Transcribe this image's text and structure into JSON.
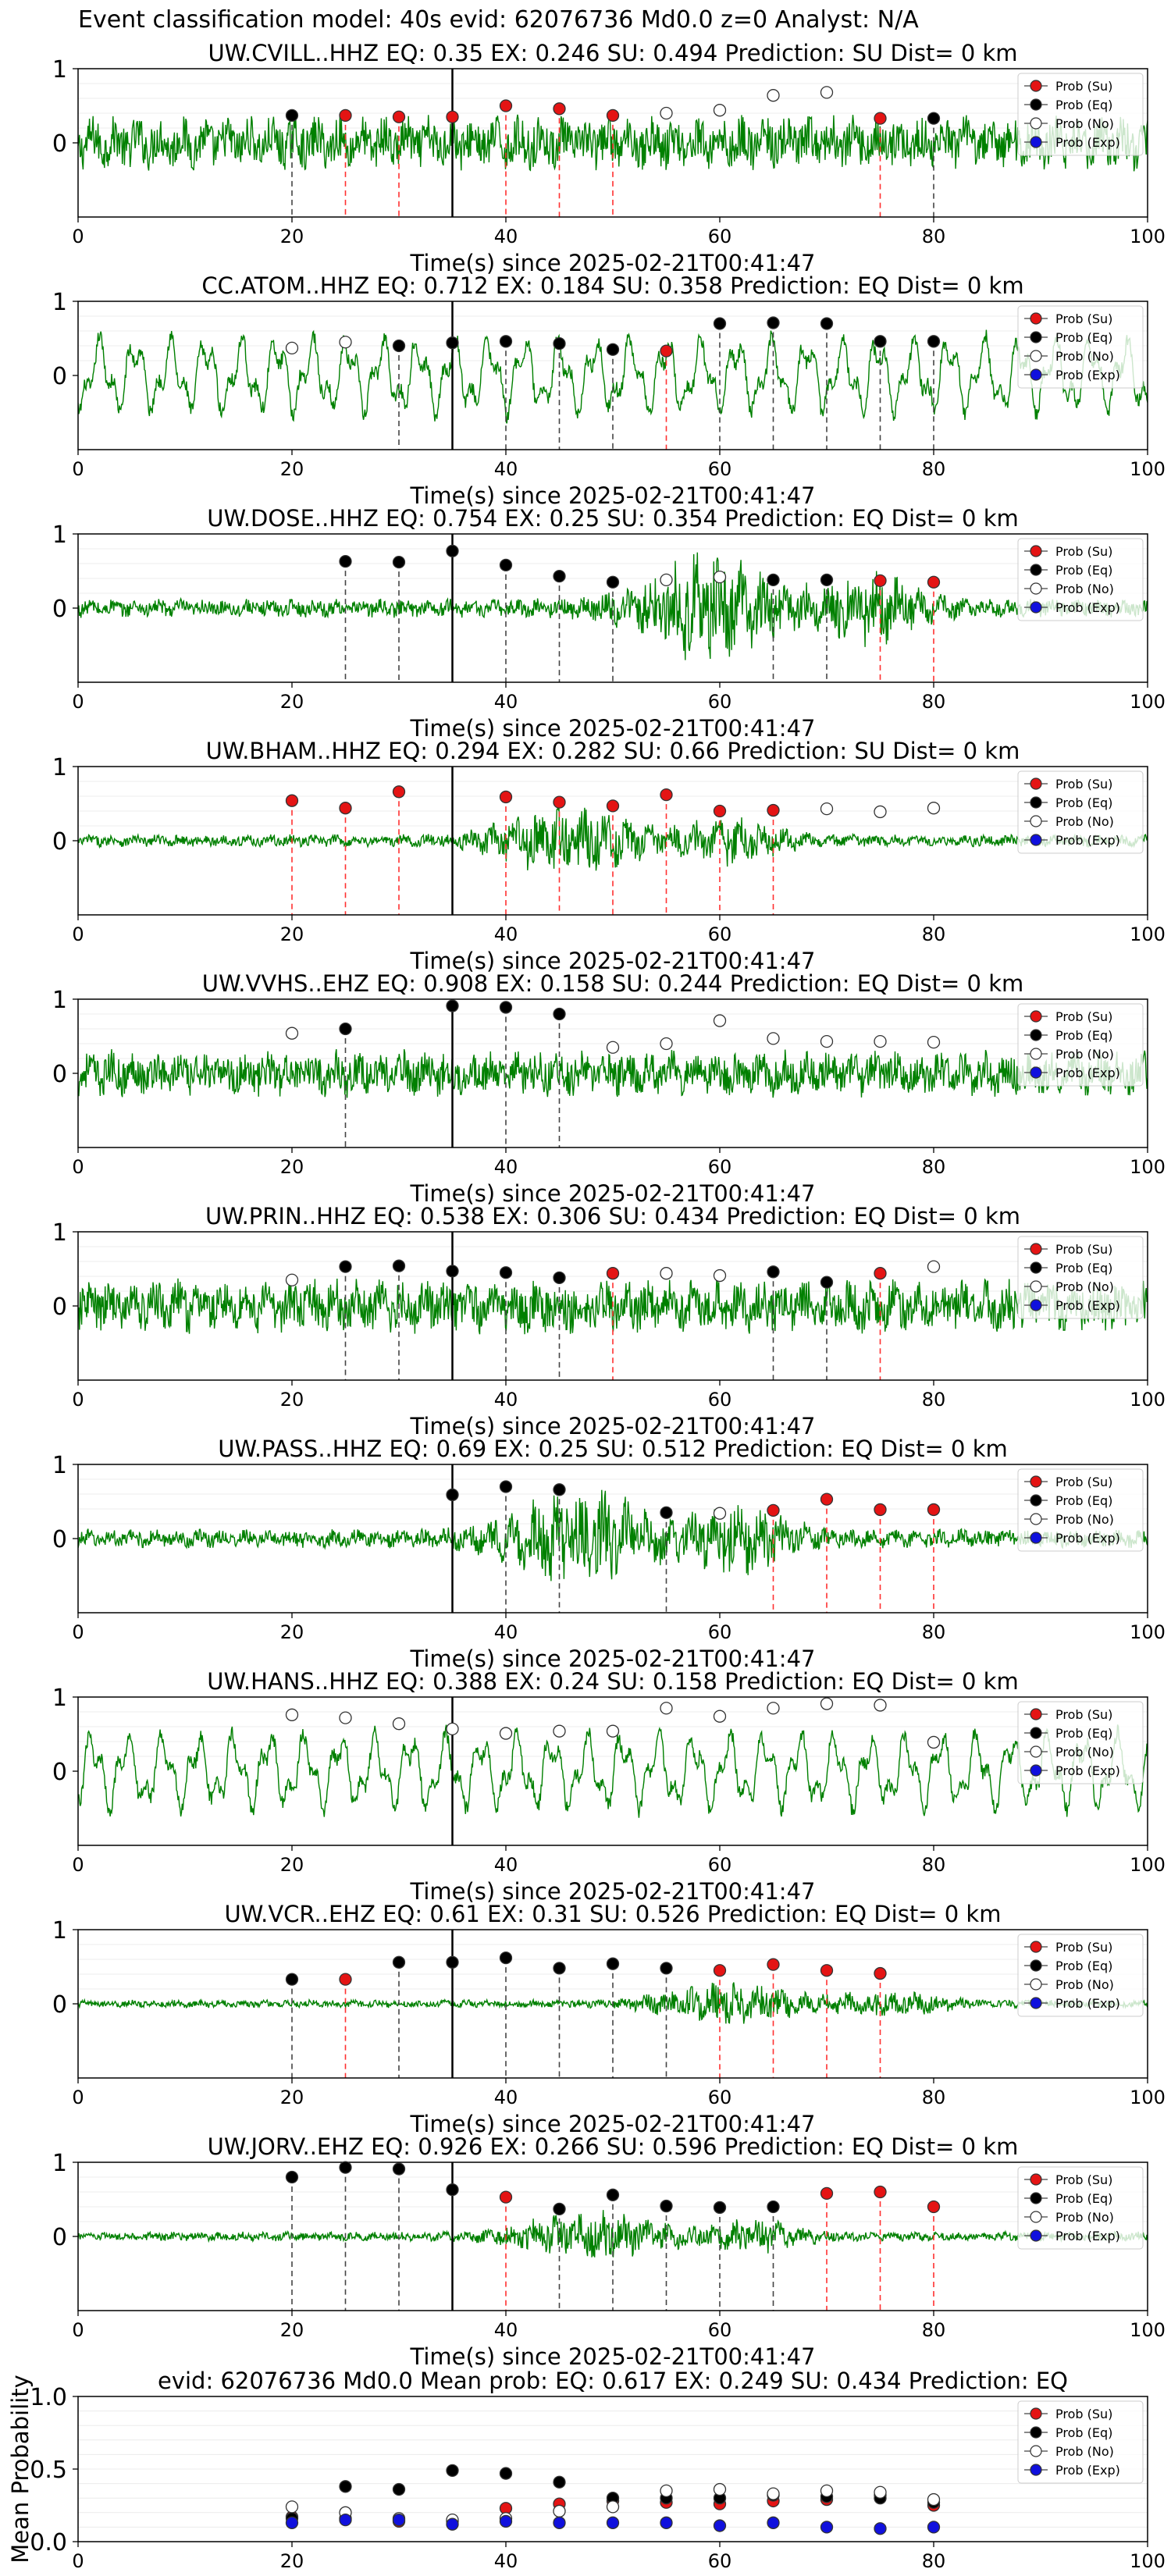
{
  "page_title": "Event classification model: 40s evid: 62076736 Md0.0 z=0 Analyst: N/A",
  "legend": [
    "Prob (Su)",
    "Prob (Eq)",
    "Prob (No)",
    "Prob (Exp)"
  ],
  "colors": {
    "waveform": "#008000",
    "su": "#e41414",
    "eq": "#000000",
    "no": "#ffffff",
    "exp": "#1010dd",
    "su_line": "#ff3030",
    "eq_line": "#444444",
    "p_pick": "#000000"
  },
  "chart_data": [
    {
      "type": "scatter",
      "title": "UW.CVILL..HHZ   EQ: 0.35  EX: 0.246  SU: 0.494   Prediction: SU    Dist= 0 km",
      "xlabel": "Time(s) since 2025-02-21T00:41:47",
      "xlim": [
        0,
        100
      ],
      "ylim": [
        -1,
        1
      ],
      "xticks": [
        "0",
        "20",
        "40",
        "60",
        "80",
        "100"
      ],
      "yticks": [
        "1",
        "0"
      ],
      "grid": true,
      "legend": "top-right",
      "p_pick": 35,
      "waveform": {
        "amplitude": 0.35,
        "character": "noisy"
      },
      "points": [
        {
          "x": 20,
          "y": 0.37,
          "cls": "eq"
        },
        {
          "x": 25,
          "y": 0.37,
          "cls": "su"
        },
        {
          "x": 30,
          "y": 0.35,
          "cls": "su"
        },
        {
          "x": 35,
          "y": 0.35,
          "cls": "su"
        },
        {
          "x": 40,
          "y": 0.5,
          "cls": "su"
        },
        {
          "x": 45,
          "y": 0.46,
          "cls": "su"
        },
        {
          "x": 50,
          "y": 0.37,
          "cls": "su"
        },
        {
          "x": 55,
          "y": 0.4,
          "cls": "no"
        },
        {
          "x": 60,
          "y": 0.44,
          "cls": "no"
        },
        {
          "x": 65,
          "y": 0.64,
          "cls": "no"
        },
        {
          "x": 70,
          "y": 0.68,
          "cls": "no"
        },
        {
          "x": 75,
          "y": 0.33,
          "cls": "su"
        },
        {
          "x": 80,
          "y": 0.33,
          "cls": "eq"
        }
      ]
    },
    {
      "type": "scatter",
      "title": "CC.ATOM..HHZ   EQ: 0.712  EX: 0.184  SU: 0.358   Prediction: EQ    Dist= 0 km",
      "xlabel": "Time(s) since 2025-02-21T00:41:47",
      "xlim": [
        0,
        100
      ],
      "ylim": [
        -1,
        1
      ],
      "xticks": [
        "0",
        "20",
        "40",
        "60",
        "80",
        "100"
      ],
      "yticks": [
        "1",
        "0"
      ],
      "grid": true,
      "legend": "top-right",
      "p_pick": 35,
      "waveform": {
        "amplitude": 0.55,
        "character": "oscillating"
      },
      "points": [
        {
          "x": 20,
          "y": 0.37,
          "cls": "no"
        },
        {
          "x": 25,
          "y": 0.45,
          "cls": "no"
        },
        {
          "x": 30,
          "y": 0.4,
          "cls": "eq"
        },
        {
          "x": 35,
          "y": 0.44,
          "cls": "eq"
        },
        {
          "x": 40,
          "y": 0.46,
          "cls": "eq"
        },
        {
          "x": 45,
          "y": 0.43,
          "cls": "eq"
        },
        {
          "x": 50,
          "y": 0.35,
          "cls": "eq"
        },
        {
          "x": 55,
          "y": 0.33,
          "cls": "su"
        },
        {
          "x": 60,
          "y": 0.7,
          "cls": "eq"
        },
        {
          "x": 65,
          "y": 0.71,
          "cls": "eq"
        },
        {
          "x": 70,
          "y": 0.7,
          "cls": "eq"
        },
        {
          "x": 75,
          "y": 0.46,
          "cls": "eq"
        },
        {
          "x": 80,
          "y": 0.46,
          "cls": "eq"
        }
      ]
    },
    {
      "type": "scatter",
      "title": "UW.DOSE..HHZ   EQ: 0.754  EX: 0.25  SU: 0.354   Prediction: EQ    Dist= 0 km",
      "xlabel": "Time(s) since 2025-02-21T00:41:47",
      "xlim": [
        0,
        100
      ],
      "ylim": [
        -1,
        1
      ],
      "xticks": [
        "0",
        "20",
        "40",
        "60",
        "80",
        "100"
      ],
      "yticks": [
        "1",
        "0"
      ],
      "grid": true,
      "legend": "top-right",
      "p_pick": 35,
      "waveform": {
        "amplitude": 0.12,
        "character": "burst"
      },
      "points": [
        {
          "x": 25,
          "y": 0.63,
          "cls": "eq"
        },
        {
          "x": 30,
          "y": 0.62,
          "cls": "eq"
        },
        {
          "x": 35,
          "y": 0.77,
          "cls": "eq"
        },
        {
          "x": 40,
          "y": 0.58,
          "cls": "eq"
        },
        {
          "x": 45,
          "y": 0.43,
          "cls": "eq"
        },
        {
          "x": 50,
          "y": 0.35,
          "cls": "eq"
        },
        {
          "x": 55,
          "y": 0.38,
          "cls": "no"
        },
        {
          "x": 60,
          "y": 0.42,
          "cls": "no"
        },
        {
          "x": 65,
          "y": 0.38,
          "cls": "eq"
        },
        {
          "x": 70,
          "y": 0.38,
          "cls": "eq"
        },
        {
          "x": 75,
          "y": 0.37,
          "cls": "su"
        },
        {
          "x": 80,
          "y": 0.35,
          "cls": "su"
        }
      ]
    },
    {
      "type": "scatter",
      "title": "UW.BHAM..HHZ   EQ: 0.294  EX: 0.282  SU: 0.66   Prediction: SU    Dist= 0 km",
      "xlabel": "Time(s) since 2025-02-21T00:41:47",
      "xlim": [
        0,
        100
      ],
      "ylim": [
        -1,
        1
      ],
      "xticks": [
        "0",
        "20",
        "40",
        "60",
        "80",
        "100"
      ],
      "yticks": [
        "1",
        "0"
      ],
      "grid": true,
      "legend": "top-right",
      "p_pick": 35,
      "waveform": {
        "amplitude": 0.08,
        "character": "burst"
      },
      "points": [
        {
          "x": 20,
          "y": 0.54,
          "cls": "su"
        },
        {
          "x": 25,
          "y": 0.44,
          "cls": "su"
        },
        {
          "x": 30,
          "y": 0.66,
          "cls": "su"
        },
        {
          "x": 40,
          "y": 0.59,
          "cls": "su"
        },
        {
          "x": 45,
          "y": 0.52,
          "cls": "su"
        },
        {
          "x": 50,
          "y": 0.47,
          "cls": "su"
        },
        {
          "x": 55,
          "y": 0.62,
          "cls": "su"
        },
        {
          "x": 60,
          "y": 0.4,
          "cls": "su"
        },
        {
          "x": 65,
          "y": 0.41,
          "cls": "su"
        },
        {
          "x": 70,
          "y": 0.43,
          "cls": "no"
        },
        {
          "x": 75,
          "y": 0.39,
          "cls": "no"
        },
        {
          "x": 80,
          "y": 0.44,
          "cls": "no"
        }
      ]
    },
    {
      "type": "scatter",
      "title": "UW.VVHS..EHZ   EQ: 0.908  EX: 0.158  SU: 0.244   Prediction: EQ    Dist= 0 km",
      "xlabel": "Time(s) since 2025-02-21T00:41:47",
      "xlim": [
        0,
        100
      ],
      "ylim": [
        -1,
        1
      ],
      "xticks": [
        "0",
        "20",
        "40",
        "60",
        "80",
        "100"
      ],
      "yticks": [
        "1",
        "0"
      ],
      "grid": true,
      "legend": "top-right",
      "p_pick": 35,
      "waveform": {
        "amplitude": 0.3,
        "character": "noisy"
      },
      "points": [
        {
          "x": 20,
          "y": 0.54,
          "cls": "no"
        },
        {
          "x": 25,
          "y": 0.6,
          "cls": "eq"
        },
        {
          "x": 35,
          "y": 0.91,
          "cls": "eq"
        },
        {
          "x": 40,
          "y": 0.89,
          "cls": "eq"
        },
        {
          "x": 45,
          "y": 0.8,
          "cls": "eq"
        },
        {
          "x": 50,
          "y": 0.35,
          "cls": "no"
        },
        {
          "x": 55,
          "y": 0.4,
          "cls": "no"
        },
        {
          "x": 60,
          "y": 0.71,
          "cls": "no"
        },
        {
          "x": 65,
          "y": 0.47,
          "cls": "no"
        },
        {
          "x": 70,
          "y": 0.43,
          "cls": "no"
        },
        {
          "x": 75,
          "y": 0.43,
          "cls": "no"
        },
        {
          "x": 80,
          "y": 0.42,
          "cls": "no"
        }
      ]
    },
    {
      "type": "scatter",
      "title": "UW.PRIN..HHZ   EQ: 0.538  EX: 0.306  SU: 0.434   Prediction: EQ    Dist= 0 km",
      "xlabel": "Time(s) since 2025-02-21T00:41:47",
      "xlim": [
        0,
        100
      ],
      "ylim": [
        -1,
        1
      ],
      "xticks": [
        "0",
        "20",
        "40",
        "60",
        "80",
        "100"
      ],
      "yticks": [
        "1",
        "0"
      ],
      "grid": true,
      "legend": "top-right",
      "p_pick": 35,
      "waveform": {
        "amplitude": 0.35,
        "character": "noisy"
      },
      "points": [
        {
          "x": 20,
          "y": 0.35,
          "cls": "no"
        },
        {
          "x": 25,
          "y": 0.53,
          "cls": "eq"
        },
        {
          "x": 30,
          "y": 0.54,
          "cls": "eq"
        },
        {
          "x": 35,
          "y": 0.47,
          "cls": "eq"
        },
        {
          "x": 40,
          "y": 0.45,
          "cls": "eq"
        },
        {
          "x": 45,
          "y": 0.38,
          "cls": "eq"
        },
        {
          "x": 50,
          "y": 0.44,
          "cls": "su"
        },
        {
          "x": 55,
          "y": 0.44,
          "cls": "no"
        },
        {
          "x": 60,
          "y": 0.41,
          "cls": "no"
        },
        {
          "x": 65,
          "y": 0.46,
          "cls": "eq"
        },
        {
          "x": 70,
          "y": 0.32,
          "cls": "eq"
        },
        {
          "x": 75,
          "y": 0.44,
          "cls": "su"
        },
        {
          "x": 80,
          "y": 0.53,
          "cls": "no"
        }
      ]
    },
    {
      "type": "scatter",
      "title": "UW.PASS..HHZ   EQ: 0.69  EX: 0.25  SU: 0.512   Prediction: EQ    Dist= 0 km",
      "xlabel": "Time(s) since 2025-02-21T00:41:47",
      "xlim": [
        0,
        100
      ],
      "ylim": [
        -1,
        1
      ],
      "xticks": [
        "0",
        "20",
        "40",
        "60",
        "80",
        "100"
      ],
      "yticks": [
        "1",
        "0"
      ],
      "grid": true,
      "legend": "top-right",
      "p_pick": 35,
      "waveform": {
        "amplitude": 0.12,
        "character": "burst"
      },
      "points": [
        {
          "x": 35,
          "y": 0.59,
          "cls": "eq"
        },
        {
          "x": 40,
          "y": 0.7,
          "cls": "eq"
        },
        {
          "x": 45,
          "y": 0.66,
          "cls": "eq"
        },
        {
          "x": 55,
          "y": 0.35,
          "cls": "eq"
        },
        {
          "x": 60,
          "y": 0.34,
          "cls": "no"
        },
        {
          "x": 65,
          "y": 0.38,
          "cls": "su"
        },
        {
          "x": 70,
          "y": 0.53,
          "cls": "su"
        },
        {
          "x": 75,
          "y": 0.39,
          "cls": "su"
        },
        {
          "x": 80,
          "y": 0.39,
          "cls": "su"
        }
      ]
    },
    {
      "type": "scatter",
      "title": "UW.HANS..HHZ   EQ: 0.388  EX: 0.24  SU: 0.158   Prediction: EQ    Dist= 0 km",
      "xlabel": "Time(s) since 2025-02-21T00:41:47",
      "xlim": [
        0,
        100
      ],
      "ylim": [
        -1,
        1
      ],
      "xticks": [
        "0",
        "20",
        "40",
        "60",
        "80",
        "100"
      ],
      "yticks": [
        "1",
        "0"
      ],
      "grid": true,
      "legend": "top-right",
      "p_pick": 35,
      "waveform": {
        "amplitude": 0.55,
        "character": "oscillating"
      },
      "points": [
        {
          "x": 20,
          "y": 0.76,
          "cls": "no"
        },
        {
          "x": 25,
          "y": 0.72,
          "cls": "no"
        },
        {
          "x": 30,
          "y": 0.64,
          "cls": "no"
        },
        {
          "x": 35,
          "y": 0.57,
          "cls": "no"
        },
        {
          "x": 40,
          "y": 0.51,
          "cls": "no"
        },
        {
          "x": 45,
          "y": 0.54,
          "cls": "no"
        },
        {
          "x": 50,
          "y": 0.54,
          "cls": "no"
        },
        {
          "x": 55,
          "y": 0.85,
          "cls": "no"
        },
        {
          "x": 60,
          "y": 0.74,
          "cls": "no"
        },
        {
          "x": 65,
          "y": 0.85,
          "cls": "no"
        },
        {
          "x": 70,
          "y": 0.91,
          "cls": "no"
        },
        {
          "x": 75,
          "y": 0.89,
          "cls": "no"
        },
        {
          "x": 80,
          "y": 0.39,
          "cls": "no"
        }
      ]
    },
    {
      "type": "scatter",
      "title": "UW.VCR..EHZ   EQ: 0.61  EX: 0.31  SU: 0.526   Prediction: EQ    Dist= 0 km",
      "xlabel": "Time(s) since 2025-02-21T00:41:47",
      "xlim": [
        0,
        100
      ],
      "ylim": [
        -1,
        1
      ],
      "xticks": [
        "0",
        "20",
        "40",
        "60",
        "80",
        "100"
      ],
      "yticks": [
        "1",
        "0"
      ],
      "grid": true,
      "legend": "top-right",
      "p_pick": 35,
      "waveform": {
        "amplitude": 0.05,
        "character": "burst"
      },
      "points": [
        {
          "x": 20,
          "y": 0.33,
          "cls": "eq"
        },
        {
          "x": 25,
          "y": 0.33,
          "cls": "su"
        },
        {
          "x": 30,
          "y": 0.56,
          "cls": "eq"
        },
        {
          "x": 35,
          "y": 0.56,
          "cls": "eq"
        },
        {
          "x": 40,
          "y": 0.62,
          "cls": "eq"
        },
        {
          "x": 45,
          "y": 0.48,
          "cls": "eq"
        },
        {
          "x": 50,
          "y": 0.54,
          "cls": "eq"
        },
        {
          "x": 55,
          "y": 0.48,
          "cls": "eq"
        },
        {
          "x": 60,
          "y": 0.45,
          "cls": "su"
        },
        {
          "x": 65,
          "y": 0.53,
          "cls": "su"
        },
        {
          "x": 70,
          "y": 0.45,
          "cls": "su"
        },
        {
          "x": 75,
          "y": 0.41,
          "cls": "su"
        }
      ]
    },
    {
      "type": "scatter",
      "title": "UW.JORV..EHZ   EQ: 0.926  EX: 0.266  SU: 0.596   Prediction: EQ    Dist= 0 km",
      "xlabel": "Time(s) since 2025-02-21T00:41:47",
      "xlim": [
        0,
        100
      ],
      "ylim": [
        -1,
        1
      ],
      "xticks": [
        "0",
        "20",
        "40",
        "60",
        "80",
        "100"
      ],
      "yticks": [
        "1",
        "0"
      ],
      "grid": true,
      "legend": "top-right",
      "p_pick": 35,
      "waveform": {
        "amplitude": 0.06,
        "character": "burst"
      },
      "points": [
        {
          "x": 20,
          "y": 0.8,
          "cls": "eq"
        },
        {
          "x": 25,
          "y": 0.93,
          "cls": "eq"
        },
        {
          "x": 30,
          "y": 0.91,
          "cls": "eq"
        },
        {
          "x": 35,
          "y": 0.63,
          "cls": "eq"
        },
        {
          "x": 40,
          "y": 0.53,
          "cls": "su"
        },
        {
          "x": 45,
          "y": 0.37,
          "cls": "eq"
        },
        {
          "x": 50,
          "y": 0.56,
          "cls": "eq"
        },
        {
          "x": 55,
          "y": 0.41,
          "cls": "eq"
        },
        {
          "x": 60,
          "y": 0.39,
          "cls": "eq"
        },
        {
          "x": 65,
          "y": 0.4,
          "cls": "eq"
        },
        {
          "x": 70,
          "y": 0.58,
          "cls": "su"
        },
        {
          "x": 75,
          "y": 0.6,
          "cls": "su"
        },
        {
          "x": 80,
          "y": 0.4,
          "cls": "su"
        }
      ]
    },
    {
      "type": "scatter",
      "title": "evid: 62076736  Md0.0   Mean prob:    EQ: 0.617  EX: 0.249  SU: 0.434   Prediction: EQ",
      "xlabel": "",
      "ylabel": "Mean Probability",
      "xlim": [
        0,
        100
      ],
      "ylim": [
        0,
        1
      ],
      "xticks": [
        "0",
        "20",
        "40",
        "60",
        "80",
        "100"
      ],
      "yticks": [
        "0.0",
        "0.5",
        "1.0"
      ],
      "grid": true,
      "legend": "top-right",
      "x": [
        20,
        25,
        30,
        35,
        40,
        45,
        50,
        55,
        60,
        65,
        70,
        75,
        80
      ],
      "series": [
        {
          "name": "Prob (Su)",
          "cls": "su",
          "values": [
            0.17,
            0.16,
            0.14,
            0.14,
            0.23,
            0.26,
            0.28,
            0.27,
            0.26,
            0.28,
            0.29,
            0.32,
            0.25
          ]
        },
        {
          "name": "Prob (Eq)",
          "cls": "eq",
          "values": [
            0.16,
            0.38,
            0.36,
            0.49,
            0.47,
            0.41,
            0.3,
            0.3,
            0.3,
            0.32,
            0.31,
            0.3,
            0.27
          ]
        },
        {
          "name": "Prob (No)",
          "cls": "no",
          "values": [
            0.24,
            0.2,
            0.16,
            0.15,
            0.16,
            0.21,
            0.24,
            0.35,
            0.36,
            0.33,
            0.35,
            0.34,
            0.29
          ]
        },
        {
          "name": "Prob (Exp)",
          "cls": "exp",
          "values": [
            0.13,
            0.15,
            0.15,
            0.12,
            0.14,
            0.13,
            0.13,
            0.13,
            0.11,
            0.13,
            0.1,
            0.09,
            0.1
          ]
        }
      ]
    }
  ]
}
